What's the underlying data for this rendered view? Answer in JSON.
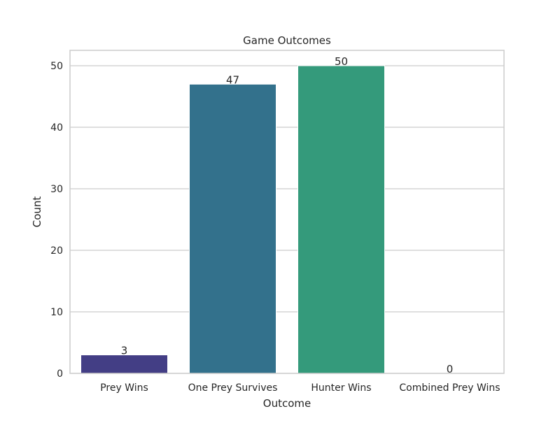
{
  "chart_data": {
    "type": "bar",
    "title": "Game Outcomes",
    "xlabel": "Outcome",
    "ylabel": "Count",
    "categories": [
      "Prey Wins",
      "One Prey Survives",
      "Hunter Wins",
      "Combined Prey Wins"
    ],
    "values": [
      3,
      47,
      50,
      0
    ],
    "data_labels": [
      "3",
      "47",
      "50",
      "0"
    ],
    "colors": [
      "#433e85",
      "#33718c",
      "#349a7b",
      "#5cc863"
    ],
    "ylim": [
      0,
      52.5
    ],
    "yticks": [
      0,
      10,
      20,
      30,
      40,
      50
    ],
    "grid": true,
    "legend": "none"
  }
}
